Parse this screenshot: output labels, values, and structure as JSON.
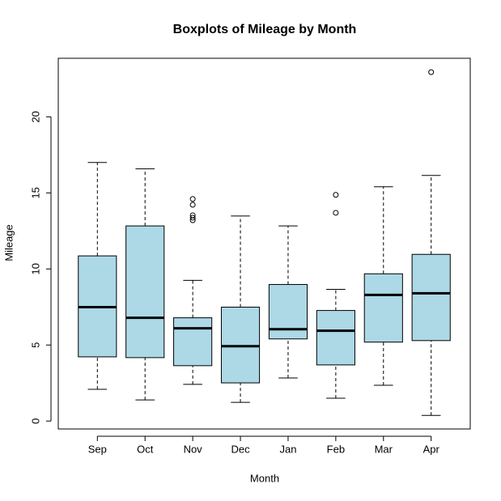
{
  "chart_data": {
    "type": "box",
    "title": "Boxplots of Mileage by Month",
    "x_label": "Month",
    "y_label": "Mileage",
    "categories": [
      "Sep",
      "Oct",
      "Nov",
      "Dec",
      "Jan",
      "Feb",
      "Mar",
      "Apr"
    ],
    "color": "#add8e6",
    "boxes": [
      {
        "min": 2.09,
        "q1": 4.22,
        "median": 7.49,
        "q3": 10.86,
        "max": 17.0,
        "outliers": []
      },
      {
        "min": 1.39,
        "q1": 4.17,
        "median": 6.79,
        "q3": 12.83,
        "max": 16.58,
        "outliers": []
      },
      {
        "min": 2.41,
        "q1": 3.64,
        "median": 6.1,
        "q3": 6.79,
        "max": 9.25,
        "outliers": [
          14.6,
          14.22,
          13.53,
          13.37,
          13.2
        ]
      },
      {
        "min": 1.23,
        "q1": 2.51,
        "median": 4.92,
        "q3": 7.49,
        "max": 13.48,
        "outliers": []
      },
      {
        "min": 2.83,
        "q1": 5.4,
        "median": 6.04,
        "q3": 8.98,
        "max": 12.83,
        "outliers": []
      },
      {
        "min": 1.5,
        "q1": 3.69,
        "median": 5.94,
        "q3": 7.27,
        "max": 8.66,
        "outliers": [
          14.87,
          13.69
        ]
      },
      {
        "min": 2.35,
        "q1": 5.19,
        "median": 8.29,
        "q3": 9.68,
        "max": 15.4,
        "outliers": []
      },
      {
        "min": 0.37,
        "q1": 5.29,
        "median": 8.4,
        "q3": 10.96,
        "max": 16.15,
        "outliers": [
          22.94
        ]
      }
    ],
    "ylim": [
      -0.52,
      23.85
    ],
    "yticks": [
      0,
      5,
      10,
      15,
      20
    ]
  }
}
